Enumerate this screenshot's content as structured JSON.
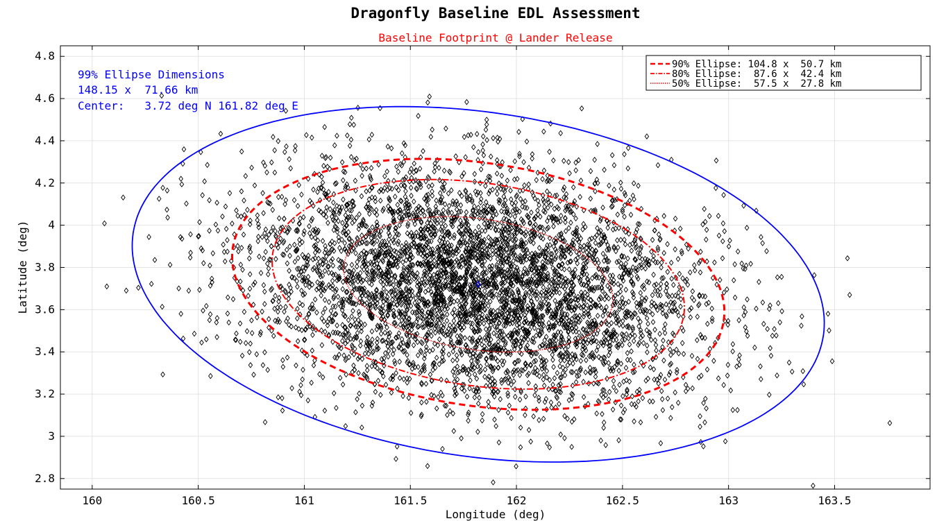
{
  "chart_data": {
    "type": "scatter",
    "title": "Dragonfly Baseline EDL Assessment",
    "subtitle": "Baseline Footprint @ Lander Release",
    "xlabel": "Longitude (deg)",
    "ylabel": "Latitude (deg)",
    "xlim": [
      159.85,
      163.95
    ],
    "ylim": [
      2.75,
      4.85
    ],
    "xticks": [
      "160",
      "160.5",
      "161",
      "161.5",
      "162",
      "162.5",
      "163",
      "163.5"
    ],
    "yticks": [
      "2.8",
      "3",
      "3.2",
      "3.4",
      "3.6",
      "3.8",
      "4",
      "4.2",
      "4.4",
      "4.6",
      "4.8"
    ],
    "grid": true,
    "legend_position": "top-right",
    "annotation": {
      "line1": "99% Ellipse Dimensions",
      "line2": "148.15 x  71.66 km",
      "line3": "Center:   3.72 deg N 161.82 deg E"
    },
    "center": {
      "lon": 161.82,
      "lat": 3.72
    },
    "ellipses": [
      {
        "name": "99% Ellipse",
        "color": "#0000ff",
        "style": "solid",
        "center": [
          161.82,
          3.72
        ],
        "semi_axes": [
          1.645,
          0.815
        ],
        "angle_deg": -8.5
      },
      {
        "name": "90% Ellipse",
        "label": "90% Ellipse: 104.8 x  50.7 km",
        "color": "#ff0000",
        "style": "dashed",
        "center": [
          161.82,
          3.72
        ],
        "semi_axes": [
          1.17,
          0.575
        ],
        "angle_deg": -8.5
      },
      {
        "name": "80% Ellipse",
        "label": "80% Ellipse:  87.6 x  42.4 km",
        "color": "#ff0000",
        "style": "dashdot",
        "center": [
          161.82,
          3.72
        ],
        "semi_axes": [
          0.98,
          0.48
        ],
        "angle_deg": -8.5
      },
      {
        "name": "50% Ellipse",
        "label": "50% Ellipse:  57.5 x  27.8 km",
        "color": "#ff0000",
        "style": "dotted",
        "center": [
          161.82,
          3.72
        ],
        "semi_axes": [
          0.64,
          0.31
        ],
        "angle_deg": -8.5
      }
    ],
    "scatter": {
      "marker": "diamond",
      "color": "#000000",
      "approx_count": 5000,
      "distribution": "bivariate-normal",
      "mean": [
        161.82,
        3.72
      ],
      "sigma_major_deg": 0.54,
      "sigma_minor_deg": 0.27,
      "angle_deg": -8.5
    }
  }
}
